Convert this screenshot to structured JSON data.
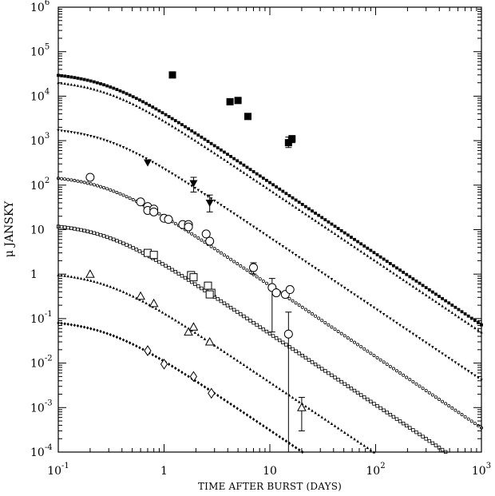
{
  "chart_data": {
    "type": "scatter",
    "title": "",
    "xlabel": "TIME AFTER BURST (DAYS)",
    "ylabel": "μ JANSKY",
    "x_scale": "log",
    "y_scale": "log",
    "xlim": [
      0.1,
      1000
    ],
    "ylim": [
      0.0001,
      1000000
    ],
    "grid": false,
    "x_ticks": [
      {
        "value": 0.1,
        "base": "10",
        "exp": "-1"
      },
      {
        "value": 1,
        "base": "1",
        "exp": ""
      },
      {
        "value": 10,
        "base": "10",
        "exp": ""
      },
      {
        "value": 100,
        "base": "10",
        "exp": "2"
      },
      {
        "value": 1000,
        "base": "10",
        "exp": "3"
      }
    ],
    "y_ticks": [
      {
        "value": 1000000,
        "base": "10",
        "exp": "6"
      },
      {
        "value": 100000,
        "base": "10",
        "exp": "5"
      },
      {
        "value": 10000,
        "base": "10",
        "exp": "4"
      },
      {
        "value": 1000,
        "base": "10",
        "exp": "3"
      },
      {
        "value": 100,
        "base": "10",
        "exp": "2"
      },
      {
        "value": 10,
        "base": "10",
        "exp": ""
      },
      {
        "value": 1,
        "base": "1",
        "exp": ""
      },
      {
        "value": 0.1,
        "base": "10",
        "exp": "-1"
      },
      {
        "value": 0.01,
        "base": "10",
        "exp": "-2"
      },
      {
        "value": 0.001,
        "base": "10",
        "exp": "-3"
      },
      {
        "value": 0.0001,
        "base": "10",
        "exp": "-4"
      }
    ],
    "series": [
      {
        "model_marker": "filled-square",
        "model": {
          "amplitude": 35000,
          "break_time": 0.28,
          "slope": 1.6
        },
        "color": "#000000",
        "points": [
          {
            "x": 1.2,
            "y": 30000,
            "marker": "filled-square"
          },
          {
            "x": 4.2,
            "y": 7500,
            "marker": "filled-square"
          },
          {
            "x": 5.0,
            "y": 8000,
            "marker": "filled-square"
          },
          {
            "x": 6.2,
            "y": 3500,
            "marker": "filled-square"
          },
          {
            "x": 15.0,
            "y": 900,
            "err": [
              700,
              1200
            ],
            "marker": "filled-square"
          },
          {
            "x": 16.2,
            "y": 1100,
            "err": [
              900,
              1300
            ],
            "marker": "filled-square"
          }
        ]
      },
      {
        "model_marker": "small-triangle-up",
        "model": {
          "amplitude": 24000,
          "break_time": 0.28,
          "slope": 1.6
        },
        "color": "#000000",
        "points": []
      },
      {
        "model_marker": "small-triangle-down",
        "model": {
          "amplitude": 2000,
          "break_time": 0.28,
          "slope": 1.6
        },
        "color": "#000000",
        "points": [
          {
            "x": 0.7,
            "y": 320,
            "marker": "filled-triangle-down"
          },
          {
            "x": 1.9,
            "y": 110,
            "err": [
              70,
              150
            ],
            "marker": "filled-triangle-down"
          },
          {
            "x": 2.7,
            "y": 40,
            "err": [
              25,
              60
            ],
            "marker": "filled-triangle-down"
          }
        ]
      },
      {
        "model_marker": "small-circle",
        "model": {
          "amplitude": 170,
          "break_time": 0.28,
          "slope": 1.6
        },
        "color": "#000000",
        "points": [
          {
            "x": 0.2,
            "y": 150,
            "marker": "open-circle"
          },
          {
            "x": 0.6,
            "y": 42,
            "marker": "open-circle"
          },
          {
            "x": 0.7,
            "y": 33,
            "marker": "open-circle"
          },
          {
            "x": 0.7,
            "y": 27,
            "marker": "open-circle"
          },
          {
            "x": 0.8,
            "y": 29,
            "marker": "open-circle"
          },
          {
            "x": 0.8,
            "y": 25,
            "marker": "open-circle"
          },
          {
            "x": 1.0,
            "y": 18,
            "marker": "open-circle"
          },
          {
            "x": 1.1,
            "y": 17,
            "marker": "open-circle"
          },
          {
            "x": 1.5,
            "y": 13,
            "marker": "open-circle"
          },
          {
            "x": 1.7,
            "y": 13,
            "marker": "open-circle"
          },
          {
            "x": 1.7,
            "y": 11.5,
            "marker": "open-circle"
          },
          {
            "x": 2.5,
            "y": 8,
            "marker": "open-circle"
          },
          {
            "x": 2.7,
            "y": 5.5,
            "marker": "open-circle"
          },
          {
            "x": 7.0,
            "y": 1.4,
            "err": [
              1.0,
              1.8
            ],
            "marker": "open-circle"
          },
          {
            "x": 10.5,
            "y": 0.5,
            "err": [
              0.05,
              0.8
            ],
            "marker": "open-circle"
          },
          {
            "x": 11.5,
            "y": 0.38,
            "marker": "open-circle"
          },
          {
            "x": 14.0,
            "y": 0.35,
            "marker": "open-circle"
          },
          {
            "x": 15.5,
            "y": 0.45,
            "marker": "open-circle"
          },
          {
            "x": 15.0,
            "y": 0.045,
            "err": [
              0.0001,
              0.14
            ],
            "marker": "open-circle"
          }
        ]
      },
      {
        "model_marker": "small-open-square",
        "model": {
          "amplitude": 14,
          "break_time": 0.28,
          "slope": 1.6
        },
        "color": "#000000",
        "points": [
          {
            "x": 0.7,
            "y": 3.0,
            "marker": "open-square"
          },
          {
            "x": 0.8,
            "y": 2.7,
            "marker": "open-square"
          },
          {
            "x": 1.8,
            "y": 0.95,
            "marker": "open-square"
          },
          {
            "x": 1.9,
            "y": 0.85,
            "marker": "open-square"
          },
          {
            "x": 2.6,
            "y": 0.55,
            "marker": "open-square"
          },
          {
            "x": 2.8,
            "y": 0.38,
            "marker": "open-square"
          },
          {
            "x": 2.7,
            "y": 0.35,
            "marker": "open-square"
          }
        ]
      },
      {
        "model_marker": "small-filled-triangle-up",
        "model": {
          "amplitude": 1.15,
          "break_time": 0.28,
          "slope": 1.6
        },
        "color": "#000000",
        "points": [
          {
            "x": 0.2,
            "y": 1.0,
            "marker": "open-triangle-up"
          },
          {
            "x": 0.6,
            "y": 0.32,
            "marker": "open-triangle-up"
          },
          {
            "x": 0.8,
            "y": 0.22,
            "marker": "open-triangle-up"
          },
          {
            "x": 1.7,
            "y": 0.05,
            "marker": "open-triangle-up"
          },
          {
            "x": 1.9,
            "y": 0.065,
            "marker": "open-triangle-up"
          },
          {
            "x": 2.7,
            "y": 0.03,
            "marker": "open-triangle-up"
          },
          {
            "x": 20.0,
            "y": 0.001,
            "err": [
              0.0003,
              0.0017
            ],
            "marker": "open-triangle-up"
          }
        ]
      },
      {
        "model_marker": "small-filled-diamond",
        "model": {
          "amplitude": 0.095,
          "break_time": 0.28,
          "slope": 1.6
        },
        "color": "#000000",
        "points": [
          {
            "x": 0.7,
            "y": 0.019,
            "marker": "open-diamond"
          },
          {
            "x": 1.0,
            "y": 0.0095,
            "marker": "open-diamond"
          },
          {
            "x": 1.9,
            "y": 0.005,
            "marker": "open-diamond"
          },
          {
            "x": 2.8,
            "y": 0.0021,
            "marker": "open-diamond"
          }
        ]
      }
    ]
  }
}
